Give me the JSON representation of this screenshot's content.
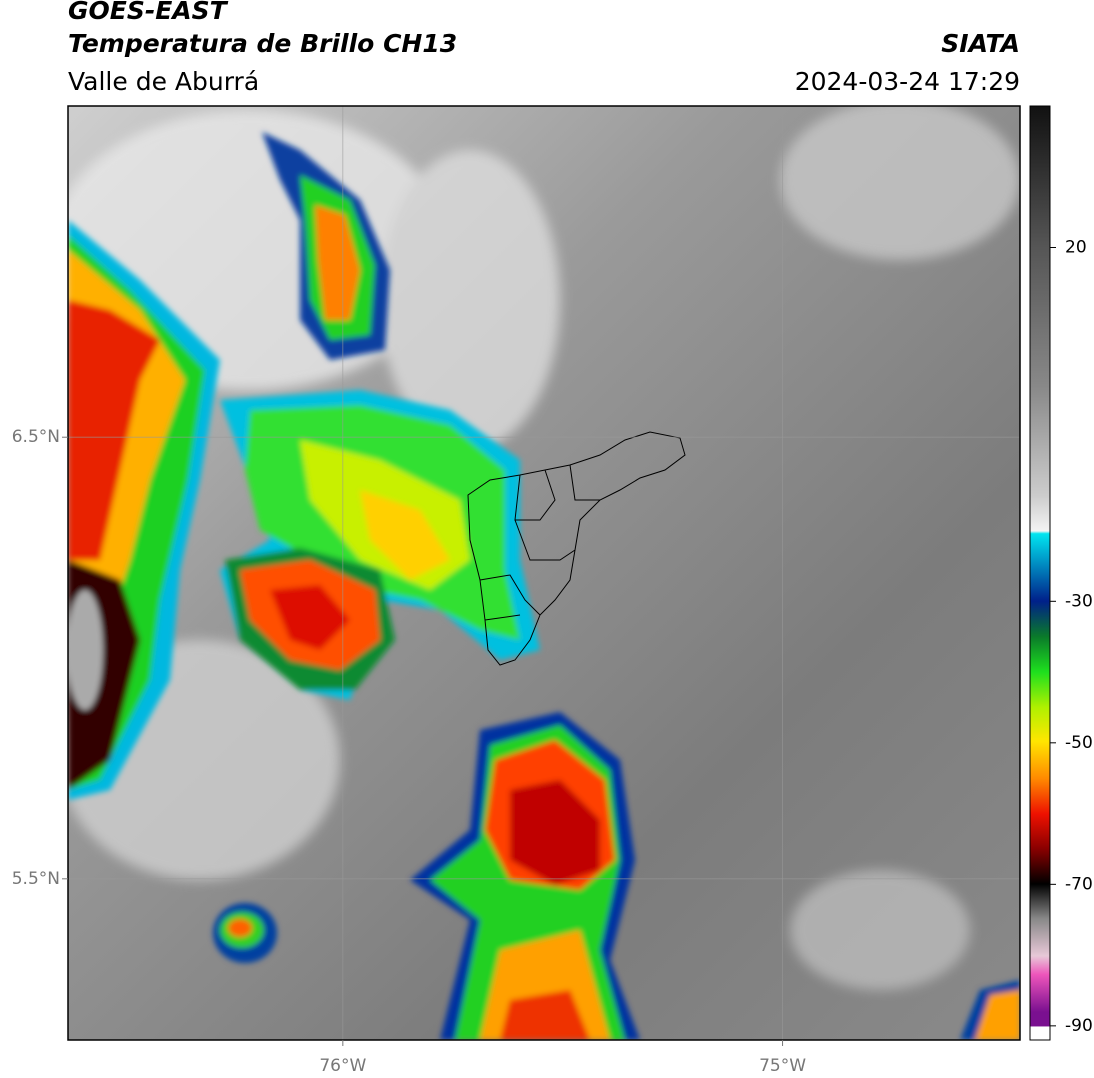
{
  "header": {
    "title": "GOES-EAST",
    "subtitle": "Temperatura de Brillo CH13",
    "region": "Valle de Aburrá",
    "source": "SIATA",
    "datetime": "2024-03-24 17:29"
  },
  "map": {
    "xlim": [
      -76.625,
      -74.46
    ],
    "ylim": [
      5.135,
      7.25
    ],
    "xticks": [
      {
        "value": -76,
        "label": "76°W"
      },
      {
        "value": -75,
        "label": "75°W"
      }
    ],
    "yticks": [
      {
        "value": 6.5,
        "label": "6.5°N"
      },
      {
        "value": 5.5,
        "label": "5.5°N"
      }
    ],
    "grid": true
  },
  "colorbar": {
    "lim": [
      -92,
      40
    ],
    "ticks": [
      20,
      -30,
      -50,
      -70,
      -90
    ]
  }
}
